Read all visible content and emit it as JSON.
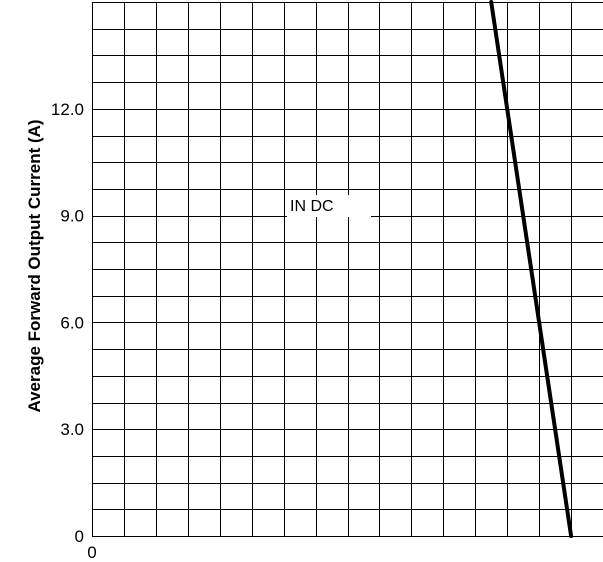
{
  "chart_data": {
    "type": "line",
    "title": "",
    "ylabel": "Average Forward Output Current (A)",
    "xlabel": "",
    "ylim": [
      0,
      15
    ],
    "xlim": [
      0,
      16
    ],
    "yticks": [
      {
        "value": 0,
        "label": "0"
      },
      {
        "value": 3,
        "label": "3.0"
      },
      {
        "value": 6,
        "label": "6.0"
      },
      {
        "value": 9,
        "label": "9.0"
      },
      {
        "value": 12,
        "label": "12.0"
      }
    ],
    "xticks": [
      {
        "value": 0,
        "label": "0"
      }
    ],
    "grid": true,
    "annotation": "IN DC",
    "series": [
      {
        "x": [
          12.5,
          15.0
        ],
        "y": [
          15.0,
          0
        ],
        "color": "#000000"
      }
    ]
  }
}
